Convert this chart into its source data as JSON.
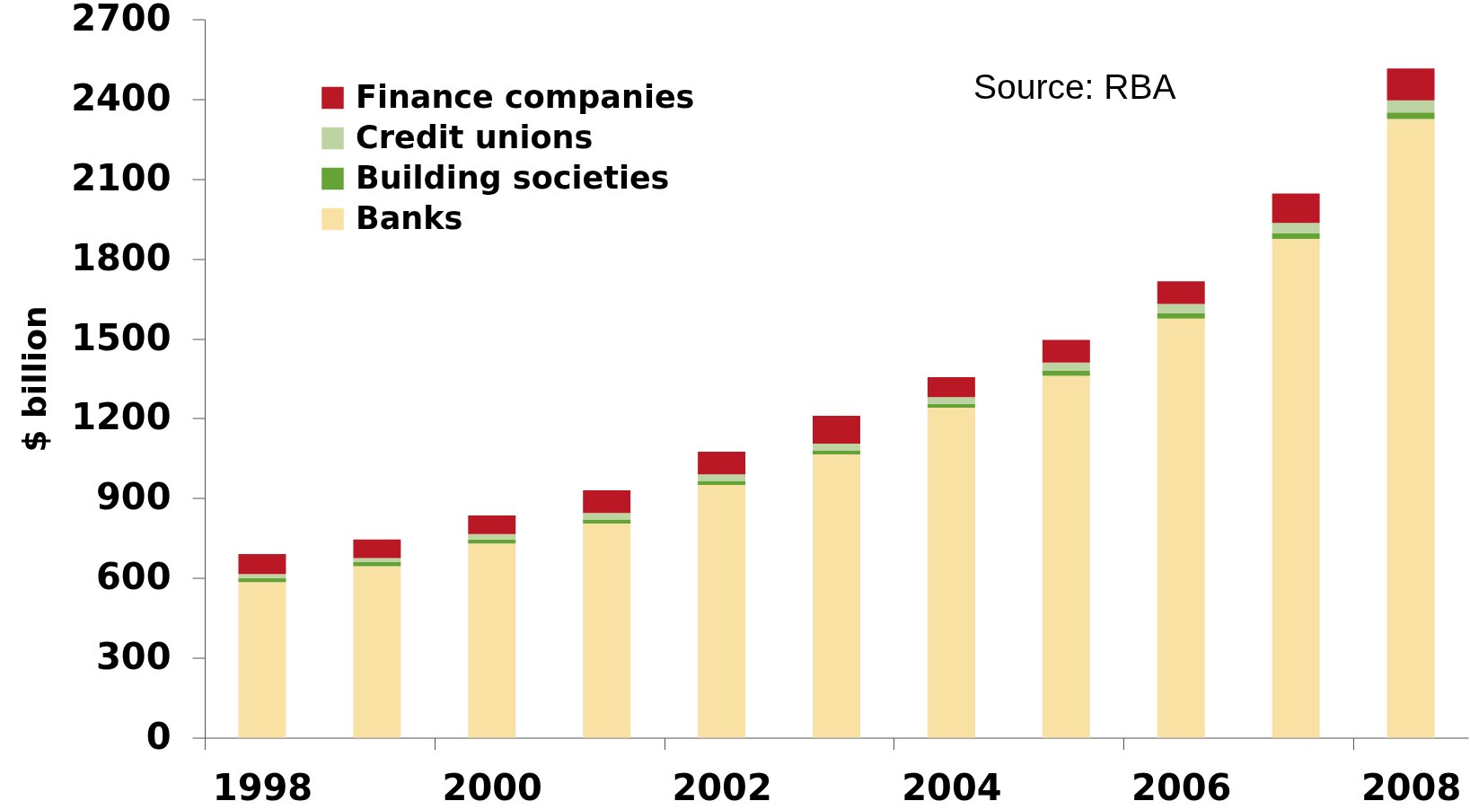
{
  "chart_data": {
    "type": "bar",
    "stacked": true,
    "categories": [
      "1998",
      null,
      "2000",
      null,
      "2002",
      null,
      "2004",
      null,
      "2006",
      null,
      "2008"
    ],
    "ylabel": "$ billion",
    "ylim": [
      0,
      2700
    ],
    "yticks": [
      0,
      300,
      600,
      900,
      1200,
      1500,
      1800,
      2100,
      2400,
      2700
    ],
    "legend": "top left",
    "annotations": [
      "Source: RBA"
    ],
    "series": [
      {
        "name": "Banks",
        "color": "#f9e0a3",
        "values": [
          585,
          645,
          730,
          805,
          950,
          1065,
          1240,
          1360,
          1575,
          1875,
          2325
        ]
      },
      {
        "name": "Building societies",
        "color": "#65a336",
        "values": [
          15,
          15,
          15,
          15,
          15,
          15,
          15,
          20,
          20,
          20,
          25
        ]
      },
      {
        "name": "Credit unions",
        "color": "#bdd3a1",
        "values": [
          15,
          15,
          20,
          25,
          25,
          25,
          25,
          30,
          35,
          40,
          45
        ]
      },
      {
        "name": "Finance companies",
        "color": "#ba1825",
        "values": [
          75,
          70,
          70,
          85,
          85,
          105,
          75,
          85,
          85,
          110,
          120
        ]
      }
    ]
  }
}
